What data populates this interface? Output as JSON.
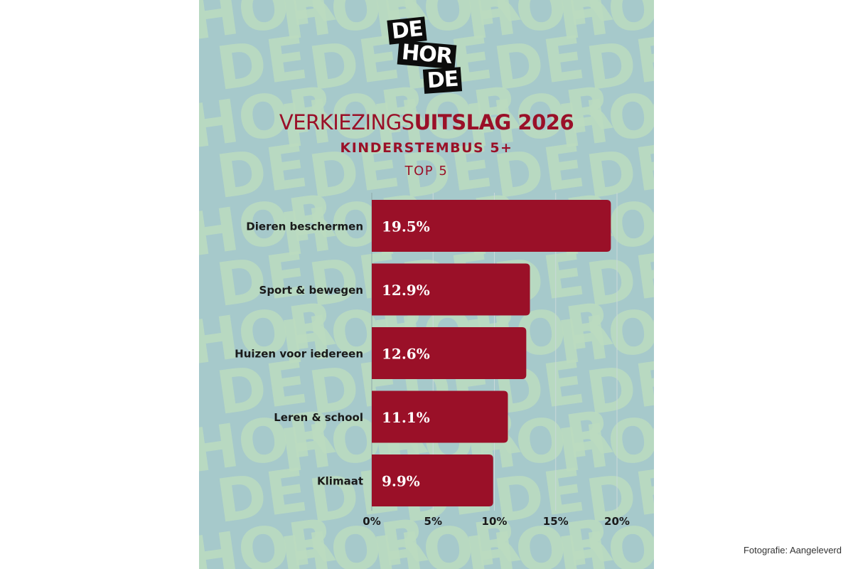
{
  "logo": {
    "word1": "DE",
    "word2": "HOR",
    "word3": "DE"
  },
  "background_pattern": [
    "DE",
    "HOR"
  ],
  "title_main": "VERKIEZINGS",
  "title_bold": "UITSLAG 2026",
  "credit": "Fotografie: Aangeleverd",
  "colors": {
    "background": "#a6c9cb",
    "pattern": "#bcdcc0",
    "bar": "#9a1028",
    "title": "#9a1028",
    "logo": "#0c0c0c"
  },
  "chart_data": {
    "type": "bar",
    "orientation": "horizontal",
    "title": "VERKIEZINGSUITSLAG 2026",
    "subtitle": "KINDERSTEMBUS 5+",
    "subsubtitle": "TOP 5",
    "categories": [
      "Dieren beschermen",
      "Sport & bewegen",
      "Huizen voor iedereen",
      "Leren & school",
      "Klimaat"
    ],
    "values": [
      19.5,
      12.9,
      12.6,
      11.1,
      9.9
    ],
    "value_labels": [
      "19.5%",
      "12.9%",
      "12.6%",
      "11.1%",
      "9.9%"
    ],
    "x_ticks": [
      0,
      5,
      10,
      15,
      20
    ],
    "x_tick_labels": [
      "0%",
      "5%",
      "10%",
      "15%",
      "20%"
    ],
    "xlim": [
      0,
      20
    ],
    "grid": true,
    "legend": false
  }
}
